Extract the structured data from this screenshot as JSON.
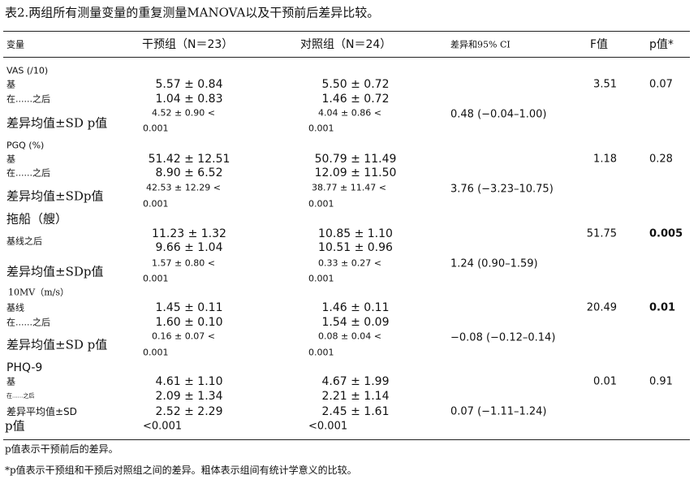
{
  "title": "表2.两组所有测量变量的重复测量MANOVA以及干预前后差异比较。",
  "header": {
    "variable": "变量",
    "intervention": "干预组（N＝23）",
    "control": "对照组（N＝24）",
    "diff_ci": "差异和95% CI",
    "f": "F值",
    "p": "p值*"
  },
  "sections": [
    {
      "name": "VAS (/10)",
      "baseline_label": "基",
      "after_label": "在......之后",
      "diff_label": "差异均值±SD p值",
      "intervention": {
        "baseline": "5.57 ± 0.84",
        "after": "1.04 ± 0.83",
        "diff": "4.52 ± 0.90 <",
        "p": "0.001"
      },
      "control": {
        "baseline": "5.50 ± 0.72",
        "after": "1.46 ± 0.72",
        "diff": "4.04 ± 0.86 <",
        "p": "0.001"
      },
      "ci": "0.48 (−0.04–1.00)",
      "f": "3.51",
      "p": "0.07",
      "bold_p": false
    },
    {
      "name": "PGQ (%)",
      "baseline_label": "基",
      "after_label": "在......之后",
      "diff_label": "差异均值±SDp值",
      "intervention": {
        "baseline": "51.42 ± 12.51",
        "after": "8.90 ± 6.52",
        "diff": "42.53 ± 12.29 <",
        "p": "0.001"
      },
      "control": {
        "baseline": "50.79 ± 11.49",
        "after": "12.09 ± 11.50",
        "diff": "38.77 ± 11.47 <",
        "p": "0.001"
      },
      "ci": "3.76 (−3.23–10.75)",
      "f": "1.18",
      "p": "0.28",
      "bold_p": false
    },
    {
      "name": "拖船（艘）",
      "baseline_label": "基线之后",
      "after_label": "",
      "diff_label": "差异均值±SDp值",
      "intervention": {
        "baseline": "11.23 ± 1.32",
        "after": "9.66 ± 1.04",
        "diff": "1.57 ± 0.80 <",
        "p": "0.001"
      },
      "control": {
        "baseline": "10.85 ± 1.10",
        "after": "10.51 ± 0.96",
        "diff": "0.33 ± 0.27 <",
        "p": "0.001"
      },
      "ci": "1.24 (0.90–1.59)",
      "f": "51.75",
      "p": "0.005",
      "bold_p": true
    },
    {
      "name": "10MV（m/s）",
      "baseline_label": "基线",
      "after_label": "在......之后",
      "diff_label": "差异均值±SD p值",
      "intervention": {
        "baseline": "1.45 ± 0.11",
        "after": "1.60 ± 0.10",
        "diff": "0.16 ± 0.07 <",
        "p": "0.001"
      },
      "control": {
        "baseline": "1.46 ± 0.11",
        "after": "1.54 ± 0.09",
        "diff": "0.08 ± 0.04 <",
        "p": "0.001"
      },
      "ci": "−0.08 (−0.12–0.14)",
      "f": "20.49",
      "p": "0.01",
      "bold_p": true
    },
    {
      "name": "PHQ-9",
      "baseline_label": "基",
      "after_label": "在......之后",
      "diff_label": "差异平均值±SD",
      "p_label": "p值",
      "intervention": {
        "baseline": "4.61 ± 1.10",
        "after": "2.09 ± 1.34",
        "diff": "2.52 ± 2.29",
        "p": "<0.001"
      },
      "control": {
        "baseline": "4.67 ± 1.99",
        "after": "2.21 ± 1.14",
        "diff": "2.45 ± 1.61",
        "p": "<0.001"
      },
      "ci": "0.07 (−1.11–1.24)",
      "f": "0.01",
      "p": "0.91",
      "bold_p": false
    }
  ],
  "footnotes": [
    "p值表示干预前后的差异。",
    "*p值表示干预组和干预后对照组之间的差异。粗体表示组间有统计学意义的比较。"
  ]
}
